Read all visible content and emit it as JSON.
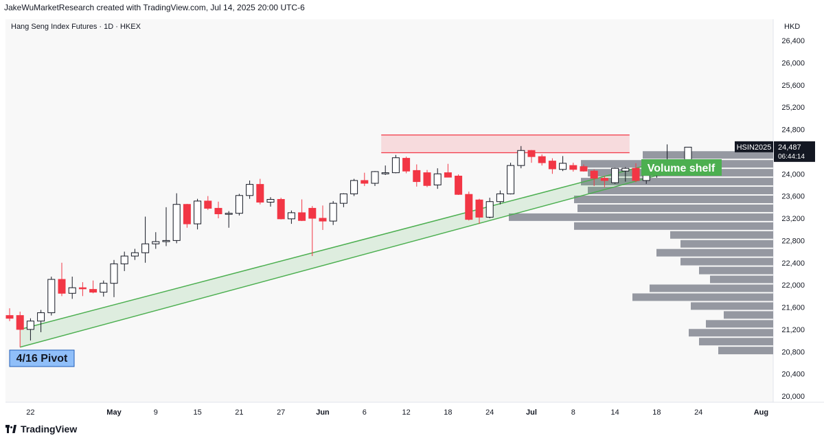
{
  "header": {
    "credit": "JakeWuMarketResearch created with TradingView.com, Jul 14, 2025 20:00 UTC-6"
  },
  "footer": {
    "brand": "TradingView"
  },
  "colors": {
    "up": "#ffffff",
    "upBorder": "#131722",
    "down": "#f23645",
    "channel": "#4caf50",
    "resistance": "#f23645",
    "volume": "#9598a1",
    "pivot_bg": "#90bff9",
    "shelf_bg": "#4caf50",
    "price_tag": "#131722"
  },
  "chart_data": {
    "type": "candlestick",
    "title": "Hang Seng Index Futures · 1D · HKEX",
    "currency": "HKD",
    "y_ticks": [
      "26,400",
      "26,000",
      "25,600",
      "25,200",
      "24,800",
      "24,400",
      "24,000",
      "23,600",
      "23,200",
      "22,800",
      "22,400",
      "22,000",
      "21,600",
      "21,200",
      "20,800",
      "20,400",
      "20,000"
    ],
    "x_ticks": [
      {
        "label": "22",
        "bold": false,
        "index": 2
      },
      {
        "label": "May",
        "bold": true,
        "index": 10
      },
      {
        "label": "9",
        "bold": false,
        "index": 14
      },
      {
        "label": "15",
        "bold": false,
        "index": 18
      },
      {
        "label": "21",
        "bold": false,
        "index": 22
      },
      {
        "label": "27",
        "bold": false,
        "index": 26
      },
      {
        "label": "Jun",
        "bold": true,
        "index": 30
      },
      {
        "label": "6",
        "bold": false,
        "index": 34
      },
      {
        "label": "12",
        "bold": false,
        "index": 38
      },
      {
        "label": "18",
        "bold": false,
        "index": 42
      },
      {
        "label": "24",
        "bold": false,
        "index": 46
      },
      {
        "label": "Jul",
        "bold": true,
        "index": 50
      },
      {
        "label": "8",
        "bold": false,
        "index": 54
      },
      {
        "label": "14",
        "bold": false,
        "index": 58
      },
      {
        "label": "18",
        "bold": false,
        "index": 62
      },
      {
        "label": "24",
        "bold": false,
        "index": 66
      },
      {
        "label": "Aug",
        "bold": true,
        "index": 72
      }
    ],
    "ylim": [
      19900,
      26600
    ],
    "candles": [
      {
        "o": 21450,
        "h": 21580,
        "l": 21350,
        "c": 21400
      },
      {
        "o": 21450,
        "h": 21520,
        "l": 20880,
        "c": 21200
      },
      {
        "o": 21200,
        "h": 21400,
        "l": 21000,
        "c": 21350
      },
      {
        "o": 21350,
        "h": 21550,
        "l": 21150,
        "c": 21500
      },
      {
        "o": 21500,
        "h": 22150,
        "l": 21450,
        "c": 22100
      },
      {
        "o": 22100,
        "h": 22400,
        "l": 21800,
        "c": 21850
      },
      {
        "o": 21850,
        "h": 22150,
        "l": 21750,
        "c": 21950
      },
      {
        "o": 21950,
        "h": 22050,
        "l": 21800,
        "c": 21930
      },
      {
        "o": 21920,
        "h": 22080,
        "l": 21850,
        "c": 21870
      },
      {
        "o": 21870,
        "h": 22080,
        "l": 21790,
        "c": 22030
      },
      {
        "o": 22030,
        "h": 22450,
        "l": 21780,
        "c": 22380
      },
      {
        "o": 22380,
        "h": 22600,
        "l": 22250,
        "c": 22520
      },
      {
        "o": 22520,
        "h": 22650,
        "l": 22450,
        "c": 22580
      },
      {
        "o": 22580,
        "h": 23230,
        "l": 22400,
        "c": 22740
      },
      {
        "o": 22740,
        "h": 22950,
        "l": 22650,
        "c": 22780
      },
      {
        "o": 22780,
        "h": 23400,
        "l": 22700,
        "c": 22800
      },
      {
        "o": 22800,
        "h": 23650,
        "l": 22750,
        "c": 23450
      },
      {
        "o": 23450,
        "h": 23460,
        "l": 23030,
        "c": 23100
      },
      {
        "o": 23100,
        "h": 23550,
        "l": 23000,
        "c": 23510
      },
      {
        "o": 23510,
        "h": 23600,
        "l": 23350,
        "c": 23380
      },
      {
        "o": 23380,
        "h": 23500,
        "l": 23200,
        "c": 23280
      },
      {
        "o": 23280,
        "h": 23330,
        "l": 23030,
        "c": 23290
      },
      {
        "o": 23290,
        "h": 23640,
        "l": 23250,
        "c": 23610
      },
      {
        "o": 23610,
        "h": 23880,
        "l": 23550,
        "c": 23810
      },
      {
        "o": 23810,
        "h": 23910,
        "l": 23450,
        "c": 23490
      },
      {
        "o": 23490,
        "h": 23580,
        "l": 23410,
        "c": 23540
      },
      {
        "o": 23540,
        "h": 23570,
        "l": 23180,
        "c": 23190
      },
      {
        "o": 23190,
        "h": 23340,
        "l": 23100,
        "c": 23300
      },
      {
        "o": 23300,
        "h": 23540,
        "l": 23150,
        "c": 23160
      },
      {
        "o": 23380,
        "h": 23420,
        "l": 22520,
        "c": 23200
      },
      {
        "o": 23200,
        "h": 23430,
        "l": 22990,
        "c": 23150
      },
      {
        "o": 23150,
        "h": 23510,
        "l": 23080,
        "c": 23470
      },
      {
        "o": 23470,
        "h": 23650,
        "l": 23400,
        "c": 23640
      },
      {
        "o": 23640,
        "h": 23910,
        "l": 23600,
        "c": 23880
      },
      {
        "o": 23880,
        "h": 24020,
        "l": 23780,
        "c": 23830
      },
      {
        "o": 23830,
        "h": 24050,
        "l": 23780,
        "c": 24040
      },
      {
        "o": 24000,
        "h": 24150,
        "l": 23980,
        "c": 24020
      },
      {
        "o": 24020,
        "h": 24340,
        "l": 24010,
        "c": 24290
      },
      {
        "o": 24280,
        "h": 24310,
        "l": 24010,
        "c": 24050
      },
      {
        "o": 24060,
        "h": 24170,
        "l": 23770,
        "c": 23860
      },
      {
        "o": 24020,
        "h": 24070,
        "l": 23760,
        "c": 23790
      },
      {
        "o": 23800,
        "h": 24100,
        "l": 23730,
        "c": 24000
      },
      {
        "o": 24020,
        "h": 24180,
        "l": 23950,
        "c": 23940
      },
      {
        "o": 23960,
        "h": 23990,
        "l": 23620,
        "c": 23630
      },
      {
        "o": 23630,
        "h": 23680,
        "l": 23160,
        "c": 23180
      },
      {
        "o": 23530,
        "h": 23550,
        "l": 23100,
        "c": 23220
      },
      {
        "o": 23220,
        "h": 23570,
        "l": 23200,
        "c": 23500
      },
      {
        "o": 23500,
        "h": 23700,
        "l": 23450,
        "c": 23640
      },
      {
        "o": 23640,
        "h": 24200,
        "l": 23630,
        "c": 24150
      },
      {
        "o": 24150,
        "h": 24500,
        "l": 24100,
        "c": 24420
      },
      {
        "o": 24420,
        "h": 24430,
        "l": 24200,
        "c": 24310
      },
      {
        "o": 24310,
        "h": 24350,
        "l": 24150,
        "c": 24200
      },
      {
        "o": 24230,
        "h": 24280,
        "l": 24000,
        "c": 24090
      },
      {
        "o": 24080,
        "h": 24320,
        "l": 24050,
        "c": 24190
      },
      {
        "o": 24150,
        "h": 24200,
        "l": 24040,
        "c": 24080
      },
      {
        "o": 24130,
        "h": 24170,
        "l": 24040,
        "c": 24050
      },
      {
        "o": 24050,
        "h": 24080,
        "l": 23780,
        "c": 23920
      },
      {
        "o": 23920,
        "h": 23960,
        "l": 23760,
        "c": 23880
      },
      {
        "o": 23840,
        "h": 24110,
        "l": 23820,
        "c": 24100
      },
      {
        "o": 24050,
        "h": 24120,
        "l": 23860,
        "c": 24100
      },
      {
        "o": 24100,
        "h": 24190,
        "l": 23850,
        "c": 23880
      },
      {
        "o": 23880,
        "h": 24170,
        "l": 23820,
        "c": 23970
      },
      {
        "o": 23970,
        "h": 24230,
        "l": 23930,
        "c": 24170
      },
      {
        "o": 24170,
        "h": 24530,
        "l": 24050,
        "c": 24180
      },
      {
        "o": 24180,
        "h": 24250,
        "l": 24100,
        "c": 24200
      },
      {
        "o": 24200,
        "h": 24480,
        "l": 24180,
        "c": 24480
      }
    ],
    "volume_profile": [
      {
        "price": 24340,
        "width": 190
      },
      {
        "price": 24180,
        "width": 280
      },
      {
        "price": 24020,
        "width": 270
      },
      {
        "price": 23860,
        "width": 280
      },
      {
        "price": 23700,
        "width": 270
      },
      {
        "price": 23540,
        "width": 290
      },
      {
        "price": 23380,
        "width": 285
      },
      {
        "price": 23220,
        "width": 385
      },
      {
        "price": 23060,
        "width": 290
      },
      {
        "price": 22900,
        "width": 150
      },
      {
        "price": 22740,
        "width": 135
      },
      {
        "price": 22580,
        "width": 170
      },
      {
        "price": 22420,
        "width": 135
      },
      {
        "price": 22260,
        "width": 108
      },
      {
        "price": 22100,
        "width": 92
      },
      {
        "price": 21940,
        "width": 180
      },
      {
        "price": 21780,
        "width": 205
      },
      {
        "price": 21620,
        "width": 120
      },
      {
        "price": 21460,
        "width": 72
      },
      {
        "price": 21300,
        "width": 98
      },
      {
        "price": 21140,
        "width": 123
      },
      {
        "price": 20980,
        "width": 108
      },
      {
        "price": 20820,
        "width": 80
      }
    ],
    "resistance_zone": {
      "top": 24700,
      "bottom": 24380
    },
    "channel": {
      "start_index": 1,
      "end_index": 63,
      "low_start": 20880,
      "low_end": 24020,
      "high_start": 21200,
      "high_end": 24250
    },
    "annotations": {
      "pivot": "4/16 Pivot",
      "shelf": "Volume shelf"
    },
    "last_price": {
      "symbol": "HSIN2025",
      "price": "24,487",
      "countdown": "06:44:14"
    }
  }
}
